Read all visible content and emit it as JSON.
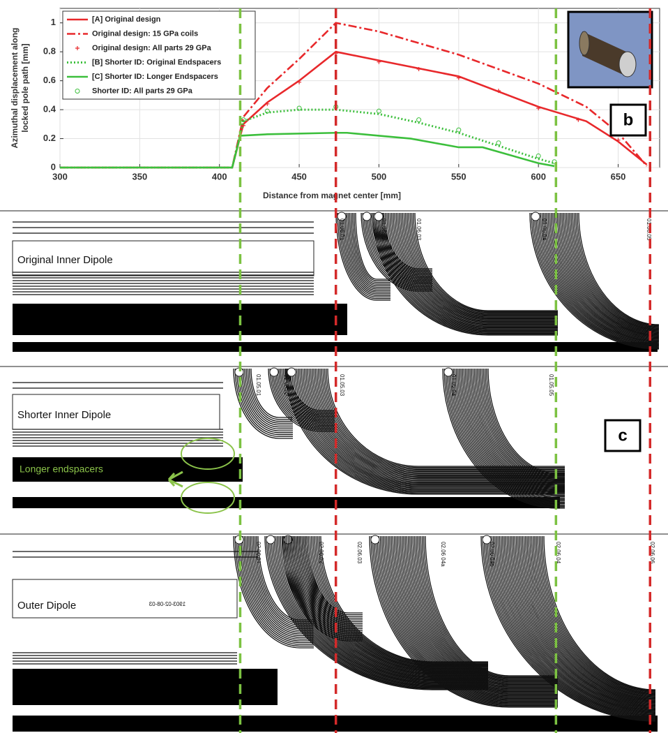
{
  "chart_data": {
    "type": "line",
    "xlabel": "Distance from magnet center [mm]",
    "ylabel": [
      "Azimuthal displacement along",
      "locked pole path [mm]"
    ],
    "xlim": [
      300,
      676
    ],
    "ylim": [
      0,
      1.1
    ],
    "xticks": [
      300,
      350,
      400,
      450,
      500,
      550,
      600,
      650
    ],
    "yticks": [
      0,
      0.2,
      0.4,
      0.6,
      0.8,
      1
    ],
    "grid": true,
    "legend": "upper left",
    "series": [
      {
        "name": "[A] Original design",
        "color": "#e8282b",
        "line_style": "solid",
        "marker": "none",
        "x": [
          300,
          408,
          415,
          430,
          450,
          473,
          500,
          550,
          600,
          630,
          650,
          668
        ],
        "values": [
          0,
          0,
          0.3,
          0.45,
          0.6,
          0.8,
          0.74,
          0.63,
          0.42,
          0.32,
          0.18,
          0.02
        ]
      },
      {
        "name": "Original design: 15 GPa coils",
        "color": "#e8282b",
        "line_style": "dashdot",
        "marker": "none",
        "x": [
          300,
          408,
          415,
          430,
          450,
          473,
          500,
          550,
          600,
          630,
          650,
          668
        ],
        "values": [
          0,
          0,
          0.35,
          0.55,
          0.75,
          1,
          0.94,
          0.78,
          0.58,
          0.42,
          0.24,
          0.01
        ]
      },
      {
        "name": "Original design: All parts 29 GPa",
        "color": "#e8282b",
        "line_style": "none",
        "marker": "plus",
        "x": [
          415,
          430,
          450,
          473,
          500,
          525,
          550,
          575,
          600,
          625,
          650
        ],
        "values": [
          0.29,
          0.44,
          0.59,
          0.79,
          0.73,
          0.68,
          0.62,
          0.53,
          0.41,
          0.33,
          0.19
        ]
      },
      {
        "name": "[B] Shorter ID: Original Endspacers",
        "color": "#3cbf3c",
        "line_style": "dotted",
        "marker": "none",
        "x": [
          300,
          408,
          415,
          430,
          450,
          473,
          500,
          525,
          550,
          575,
          600,
          610
        ],
        "values": [
          0,
          0,
          0.32,
          0.38,
          0.4,
          0.4,
          0.37,
          0.31,
          0.24,
          0.15,
          0.06,
          0.03
        ]
      },
      {
        "name": "[C] Shorter ID: Longer Endspacers",
        "color": "#3cbf3c",
        "line_style": "solid",
        "marker": "none",
        "x": [
          300,
          408,
          413,
          430,
          473,
          480,
          500,
          520,
          550,
          565,
          600,
          610
        ],
        "values": [
          0,
          0,
          0.22,
          0.23,
          0.24,
          0.24,
          0.22,
          0.2,
          0.14,
          0.14,
          0.03,
          0.01
        ]
      },
      {
        "name": "Shorter ID: All parts 29 GPa",
        "color": "#3cbf3c",
        "line_style": "none",
        "marker": "circle",
        "x": [
          415,
          430,
          450,
          473,
          500,
          525,
          550,
          575,
          600,
          610
        ],
        "values": [
          0.33,
          0.39,
          0.41,
          0.42,
          0.39,
          0.33,
          0.26,
          0.17,
          0.08,
          0.04
        ]
      }
    ],
    "reference_lines": [
      {
        "x": 413,
        "color": "#7cc242"
      },
      {
        "x": 473,
        "color": "#d42a2a"
      },
      {
        "x": 611,
        "color": "#7cc242"
      },
      {
        "x": 670,
        "color": "#d42a2a"
      }
    ]
  },
  "annotations": {
    "panel_b": "b",
    "panel_c": "c"
  },
  "panels": [
    {
      "label": "Original Inner Dipole",
      "coil_labels": [
        "01.06.01",
        "01.06.02",
        "01.06.03",
        "01.06.04",
        "01.06.05"
      ]
    },
    {
      "label": "Shorter Inner Dipole",
      "note": "Longer endspacers",
      "coil_labels": [
        "01.05.01",
        "01.05.02",
        "01.05.03",
        "01.05.04",
        "01.05.05"
      ]
    },
    {
      "label": "Outer Dipole",
      "part_number": "1903-02-08-03",
      "coil_labels": [
        "02.06.01",
        "02.06.02",
        "02.06.03",
        "02.06 04a",
        "02.06 04b",
        "02.06.04",
        "02.06.06"
      ]
    }
  ]
}
